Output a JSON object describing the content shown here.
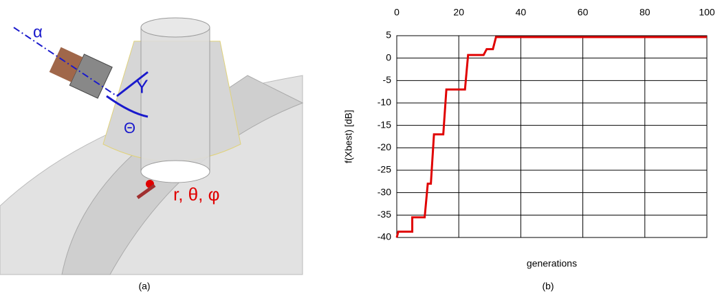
{
  "panel_a": {
    "labels": [
      "α",
      "Y",
      "Θ",
      "r, θ, φ"
    ],
    "caption": "(a)"
  },
  "chart_data": {
    "type": "line",
    "caption": "(b)",
    "x_label": "generations",
    "y_label": "f(Xbest) [dB]",
    "x": [
      0,
      0.5,
      5,
      5,
      9,
      10,
      11,
      12,
      15,
      16,
      22,
      23,
      28,
      29,
      31,
      32,
      100
    ],
    "series": [
      {
        "color": "#e00000",
        "values": [
          -40,
          -38.7,
          -38.7,
          -35.5,
          -35.5,
          -28,
          -28,
          -17,
          -17,
          -7,
          -7,
          0.7,
          0.7,
          2,
          2,
          4.7,
          4.7
        ]
      }
    ],
    "xlim": [
      0,
      100
    ],
    "xticks": [
      0,
      20,
      40,
      60,
      80,
      100
    ],
    "ylim": [
      -40,
      5
    ],
    "yticks": [
      -40,
      -35,
      -30,
      -25,
      -20,
      -15,
      -10,
      -5,
      0,
      5
    ],
    "grid": true
  }
}
